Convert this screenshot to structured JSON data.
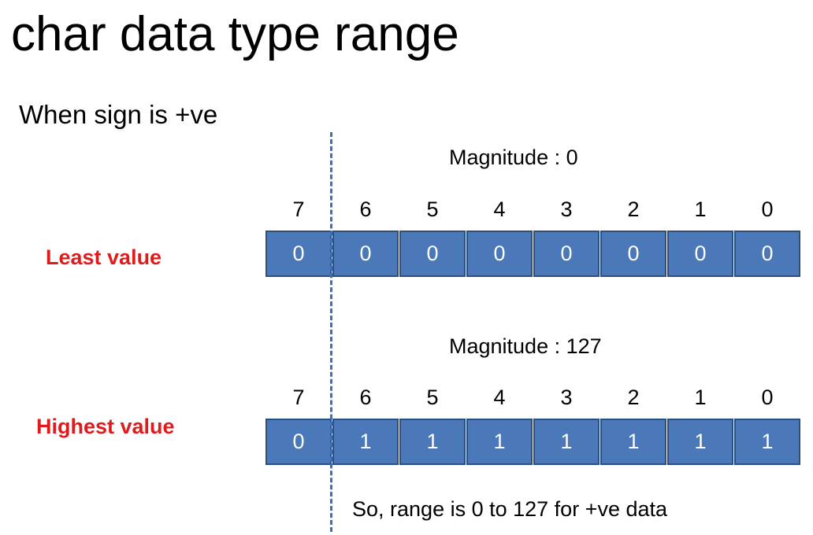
{
  "slide": {
    "title": "char data type range",
    "subtitle": "When sign is +ve",
    "note": "So, range is 0 to 127 for +ve data",
    "cell_color": "#4a78b8",
    "label_color": "#e01b1b",
    "divider_color": "#3b6fb8"
  },
  "rows": [
    {
      "label": "Least value",
      "magnitude": "Magnitude  : 0",
      "bit_indices": [
        "7",
        "6",
        "5",
        "4",
        "3",
        "2",
        "1",
        "0"
      ],
      "bits": [
        "0",
        "0",
        "0",
        "0",
        "0",
        "0",
        "0",
        "0"
      ]
    },
    {
      "label": "Highest value",
      "magnitude": "Magnitude  : 127",
      "bit_indices": [
        "7",
        "6",
        "5",
        "4",
        "3",
        "2",
        "1",
        "0"
      ],
      "bits": [
        "0",
        "1",
        "1",
        "1",
        "1",
        "1",
        "1",
        "1"
      ]
    }
  ]
}
